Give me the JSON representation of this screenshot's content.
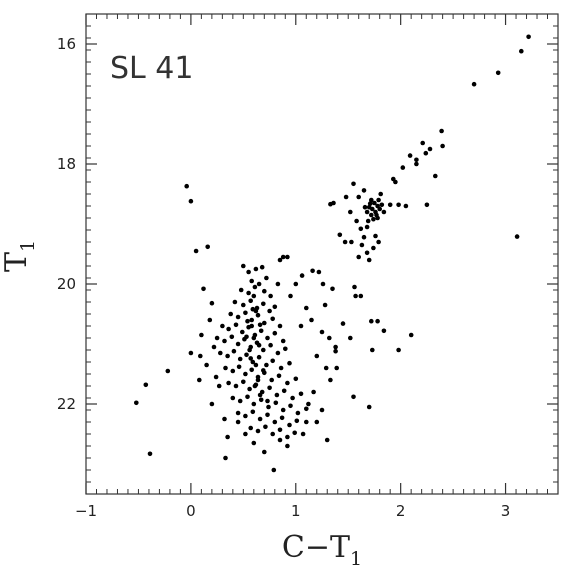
{
  "chart_data": {
    "type": "scatter",
    "title": "",
    "annotation": "SL 41",
    "xlabel": {
      "main": "C−T",
      "sub": "1"
    },
    "ylabel": {
      "main": "T",
      "sub": "1"
    },
    "xlim": [
      -1,
      3.5
    ],
    "ylim": [
      23.5,
      15.5
    ],
    "y_inverted": true,
    "grid": false,
    "legend": "none",
    "x_ticks_major": [
      -1,
      0,
      1,
      2,
      3
    ],
    "x_tick_labels": [
      "−1",
      "0",
      "1",
      "2",
      "3"
    ],
    "y_ticks_major": [
      16,
      18,
      20,
      22
    ],
    "y_tick_labels": [
      "16",
      "18",
      "20",
      "22"
    ],
    "x_minor_step": 0.1,
    "y_minor_step": 0.2,
    "point_color": "#000000",
    "points": [
      [
        3.22,
        15.88
      ],
      [
        3.15,
        16.12
      ],
      [
        2.93,
        16.48
      ],
      [
        2.7,
        16.67
      ],
      [
        2.39,
        17.45
      ],
      [
        2.4,
        17.7
      ],
      [
        2.28,
        17.75
      ],
      [
        2.24,
        17.82
      ],
      [
        2.21,
        17.65
      ],
      [
        2.15,
        17.93
      ],
      [
        2.09,
        17.86
      ],
      [
        2.15,
        18.0
      ],
      [
        2.33,
        18.2
      ],
      [
        2.02,
        18.06
      ],
      [
        1.93,
        18.25
      ],
      [
        1.95,
        18.3
      ],
      [
        1.81,
        18.5
      ],
      [
        1.65,
        18.44
      ],
      [
        1.55,
        18.33
      ],
      [
        1.6,
        18.55
      ],
      [
        1.72,
        18.6
      ],
      [
        1.75,
        18.65
      ],
      [
        1.78,
        18.7
      ],
      [
        1.8,
        18.75
      ],
      [
        1.7,
        18.72
      ],
      [
        1.76,
        18.8
      ],
      [
        1.72,
        18.85
      ],
      [
        1.78,
        18.9
      ],
      [
        1.82,
        18.68
      ],
      [
        1.68,
        18.8
      ],
      [
        1.74,
        18.92
      ],
      [
        1.79,
        18.6
      ],
      [
        1.73,
        18.75
      ],
      [
        1.77,
        18.85
      ],
      [
        1.71,
        18.66
      ],
      [
        1.84,
        18.8
      ],
      [
        1.69,
        18.95
      ],
      [
        1.66,
        18.72
      ],
      [
        1.9,
        18.68
      ],
      [
        1.98,
        18.68
      ],
      [
        2.05,
        18.7
      ],
      [
        2.25,
        18.68
      ],
      [
        1.33,
        18.67
      ],
      [
        1.36,
        18.65
      ],
      [
        1.48,
        18.55
      ],
      [
        1.52,
        18.8
      ],
      [
        1.58,
        18.95
      ],
      [
        1.62,
        19.08
      ],
      [
        1.65,
        19.22
      ],
      [
        1.53,
        19.3
      ],
      [
        1.42,
        19.18
      ],
      [
        1.68,
        19.48
      ],
      [
        1.7,
        19.6
      ],
      [
        1.74,
        19.4
      ],
      [
        1.76,
        19.2
      ],
      [
        1.79,
        19.3
      ],
      [
        1.68,
        19.05
      ],
      [
        1.63,
        19.35
      ],
      [
        1.6,
        19.55
      ],
      [
        1.47,
        19.3
      ],
      [
        3.11,
        19.21
      ],
      [
        1.56,
        20.05
      ],
      [
        1.57,
        20.2
      ],
      [
        1.62,
        20.2
      ],
      [
        1.72,
        20.62
      ],
      [
        1.78,
        20.62
      ],
      [
        1.84,
        20.78
      ],
      [
        2.1,
        20.85
      ],
      [
        1.98,
        21.1
      ],
      [
        1.73,
        21.1
      ],
      [
        1.52,
        20.9
      ],
      [
        1.45,
        20.66
      ],
      [
        1.38,
        21.12
      ],
      [
        1.55,
        21.88
      ],
      [
        1.7,
        22.05
      ],
      [
        1.39,
        21.4
      ],
      [
        1.28,
        20.35
      ],
      [
        1.35,
        20.08
      ],
      [
        1.22,
        19.8
      ],
      [
        1.26,
        20.0
      ],
      [
        1.16,
        19.78
      ],
      [
        1.06,
        19.86
      ],
      [
        1.0,
        20.0
      ],
      [
        0.95,
        20.2
      ],
      [
        1.1,
        20.4
      ],
      [
        1.05,
        20.7
      ],
      [
        1.15,
        20.6
      ],
      [
        1.25,
        20.8
      ],
      [
        1.32,
        20.9
      ],
      [
        1.38,
        21.05
      ],
      [
        1.2,
        21.2
      ],
      [
        1.29,
        21.4
      ],
      [
        1.33,
        21.6
      ],
      [
        1.17,
        21.8
      ],
      [
        1.12,
        22.0
      ],
      [
        1.25,
        22.1
      ],
      [
        1.2,
        22.3
      ],
      [
        1.3,
        22.6
      ],
      [
        0.85,
        19.6
      ],
      [
        0.92,
        19.55
      ],
      [
        0.88,
        19.55
      ],
      [
        0.83,
        20.0
      ],
      [
        0.05,
        19.45
      ],
      [
        0.16,
        19.38
      ],
      [
        -0.04,
        18.37
      ],
      [
        0.0,
        18.62
      ],
      [
        0.12,
        20.08
      ],
      [
        0.2,
        20.32
      ],
      [
        0.0,
        21.15
      ],
      [
        0.09,
        21.2
      ],
      [
        -0.22,
        21.45
      ],
      [
        -0.43,
        21.68
      ],
      [
        -0.52,
        21.98
      ],
      [
        -0.39,
        22.83
      ],
      [
        0.33,
        22.9
      ],
      [
        0.79,
        23.1
      ],
      [
        0.85,
        22.6
      ],
      [
        0.92,
        22.7
      ],
      [
        1.07,
        22.5
      ],
      [
        1.1,
        22.3
      ],
      [
        0.52,
        22.5
      ],
      [
        0.6,
        22.65
      ],
      [
        0.7,
        22.8
      ],
      [
        0.45,
        22.3
      ],
      [
        0.5,
        19.7
      ],
      [
        0.55,
        19.8
      ],
      [
        0.62,
        19.75
      ],
      [
        0.68,
        19.72
      ],
      [
        0.58,
        19.95
      ],
      [
        0.65,
        20.0
      ],
      [
        0.72,
        19.9
      ],
      [
        0.48,
        20.1
      ],
      [
        0.55,
        20.15
      ],
      [
        0.61,
        20.05
      ],
      [
        0.7,
        20.12
      ],
      [
        0.76,
        20.2
      ],
      [
        0.42,
        20.3
      ],
      [
        0.5,
        20.35
      ],
      [
        0.57,
        20.28
      ],
      [
        0.63,
        20.4
      ],
      [
        0.69,
        20.33
      ],
      [
        0.75,
        20.45
      ],
      [
        0.8,
        20.38
      ],
      [
        0.38,
        20.5
      ],
      [
        0.45,
        20.55
      ],
      [
        0.52,
        20.48
      ],
      [
        0.58,
        20.6
      ],
      [
        0.64,
        20.52
      ],
      [
        0.7,
        20.65
      ],
      [
        0.78,
        20.58
      ],
      [
        0.85,
        20.7
      ],
      [
        0.3,
        20.7
      ],
      [
        0.36,
        20.75
      ],
      [
        0.43,
        20.68
      ],
      [
        0.49,
        20.8
      ],
      [
        0.55,
        20.72
      ],
      [
        0.61,
        20.85
      ],
      [
        0.67,
        20.78
      ],
      [
        0.73,
        20.9
      ],
      [
        0.8,
        20.82
      ],
      [
        0.88,
        20.95
      ],
      [
        0.25,
        20.9
      ],
      [
        0.32,
        20.95
      ],
      [
        0.39,
        20.88
      ],
      [
        0.45,
        21.0
      ],
      [
        0.51,
        20.92
      ],
      [
        0.57,
        21.05
      ],
      [
        0.63,
        20.98
      ],
      [
        0.69,
        21.1
      ],
      [
        0.76,
        21.02
      ],
      [
        0.83,
        21.15
      ],
      [
        0.9,
        21.08
      ],
      [
        0.28,
        21.15
      ],
      [
        0.35,
        21.2
      ],
      [
        0.41,
        21.12
      ],
      [
        0.47,
        21.25
      ],
      [
        0.53,
        21.18
      ],
      [
        0.59,
        21.3
      ],
      [
        0.65,
        21.22
      ],
      [
        0.72,
        21.35
      ],
      [
        0.78,
        21.28
      ],
      [
        0.86,
        21.4
      ],
      [
        0.94,
        21.32
      ],
      [
        0.33,
        21.4
      ],
      [
        0.4,
        21.45
      ],
      [
        0.46,
        21.38
      ],
      [
        0.52,
        21.5
      ],
      [
        0.58,
        21.43
      ],
      [
        0.64,
        21.55
      ],
      [
        0.7,
        21.48
      ],
      [
        0.77,
        21.6
      ],
      [
        0.84,
        21.53
      ],
      [
        0.92,
        21.65
      ],
      [
        1.0,
        21.58
      ],
      [
        0.36,
        21.65
      ],
      [
        0.43,
        21.7
      ],
      [
        0.5,
        21.63
      ],
      [
        0.56,
        21.75
      ],
      [
        0.62,
        21.68
      ],
      [
        0.68,
        21.8
      ],
      [
        0.75,
        21.73
      ],
      [
        0.82,
        21.85
      ],
      [
        0.89,
        21.78
      ],
      [
        0.97,
        21.9
      ],
      [
        1.05,
        21.83
      ],
      [
        0.4,
        21.9
      ],
      [
        0.47,
        21.95
      ],
      [
        0.54,
        21.88
      ],
      [
        0.6,
        22.0
      ],
      [
        0.67,
        21.93
      ],
      [
        0.74,
        22.05
      ],
      [
        0.81,
        21.98
      ],
      [
        0.88,
        22.1
      ],
      [
        0.95,
        22.03
      ],
      [
        1.02,
        22.15
      ],
      [
        1.1,
        22.08
      ],
      [
        0.45,
        22.15
      ],
      [
        0.52,
        22.2
      ],
      [
        0.59,
        22.13
      ],
      [
        0.66,
        22.25
      ],
      [
        0.73,
        22.18
      ],
      [
        0.8,
        22.3
      ],
      [
        0.87,
        22.23
      ],
      [
        0.94,
        22.35
      ],
      [
        1.01,
        22.28
      ],
      [
        0.57,
        22.4
      ],
      [
        0.64,
        22.45
      ],
      [
        0.71,
        22.38
      ],
      [
        0.78,
        22.5
      ],
      [
        0.85,
        22.43
      ],
      [
        0.92,
        22.55
      ],
      [
        0.99,
        22.48
      ],
      [
        0.6,
        20.2
      ],
      [
        0.62,
        20.45
      ],
      [
        0.58,
        20.7
      ],
      [
        0.6,
        20.9
      ],
      [
        0.56,
        21.1
      ],
      [
        0.62,
        21.35
      ],
      [
        0.64,
        21.6
      ],
      [
        0.66,
        21.85
      ],
      [
        0.54,
        20.62
      ],
      [
        0.66,
        20.68
      ],
      [
        0.59,
        20.42
      ],
      [
        0.53,
        20.88
      ],
      [
        0.65,
        21.02
      ],
      [
        0.57,
        21.24
      ],
      [
        0.69,
        21.44
      ],
      [
        0.61,
        21.7
      ],
      [
        0.73,
        21.95
      ],
      [
        0.18,
        20.6
      ],
      [
        0.22,
        21.05
      ],
      [
        0.15,
        21.35
      ],
      [
        0.27,
        21.7
      ],
      [
        0.2,
        22.0
      ],
      [
        0.32,
        22.25
      ],
      [
        0.24,
        21.55
      ],
      [
        0.1,
        20.85
      ],
      [
        0.08,
        21.6
      ],
      [
        0.35,
        22.55
      ]
    ]
  }
}
